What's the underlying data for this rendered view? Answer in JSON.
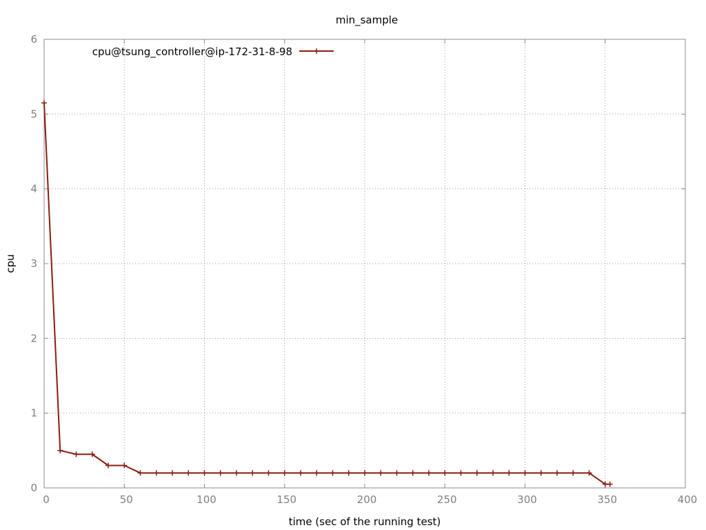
{
  "chart_data": {
    "type": "line",
    "title": "min_sample",
    "xlabel": "time (sec of the running test)",
    "ylabel": "cpu",
    "xlim": [
      0,
      400
    ],
    "ylim": [
      0,
      6
    ],
    "xticks": [
      "0",
      "50",
      "100",
      "150",
      "200",
      "250",
      "300",
      "350",
      "400"
    ],
    "yticks": [
      "0",
      "1",
      "2",
      "3",
      "4",
      "5",
      "6"
    ],
    "grid": true,
    "legend_position": "top-left",
    "series": [
      {
        "name": "cpu@tsung_controller@ip-172-31-8-98",
        "color": "#8b1a10",
        "marker": "plus",
        "x": [
          0,
          10,
          20,
          30,
          40,
          50,
          60,
          70,
          80,
          90,
          100,
          110,
          120,
          130,
          140,
          150,
          160,
          170,
          180,
          190,
          200,
          210,
          220,
          230,
          240,
          250,
          260,
          270,
          280,
          290,
          300,
          310,
          320,
          330,
          340,
          350,
          353
        ],
        "y": [
          5.15,
          0.5,
          0.45,
          0.45,
          0.3,
          0.3,
          0.2,
          0.2,
          0.2,
          0.2,
          0.2,
          0.2,
          0.2,
          0.2,
          0.2,
          0.2,
          0.2,
          0.2,
          0.2,
          0.2,
          0.2,
          0.2,
          0.2,
          0.2,
          0.2,
          0.2,
          0.2,
          0.2,
          0.2,
          0.2,
          0.2,
          0.2,
          0.2,
          0.2,
          0.2,
          0.05,
          0.05
        ]
      }
    ]
  }
}
